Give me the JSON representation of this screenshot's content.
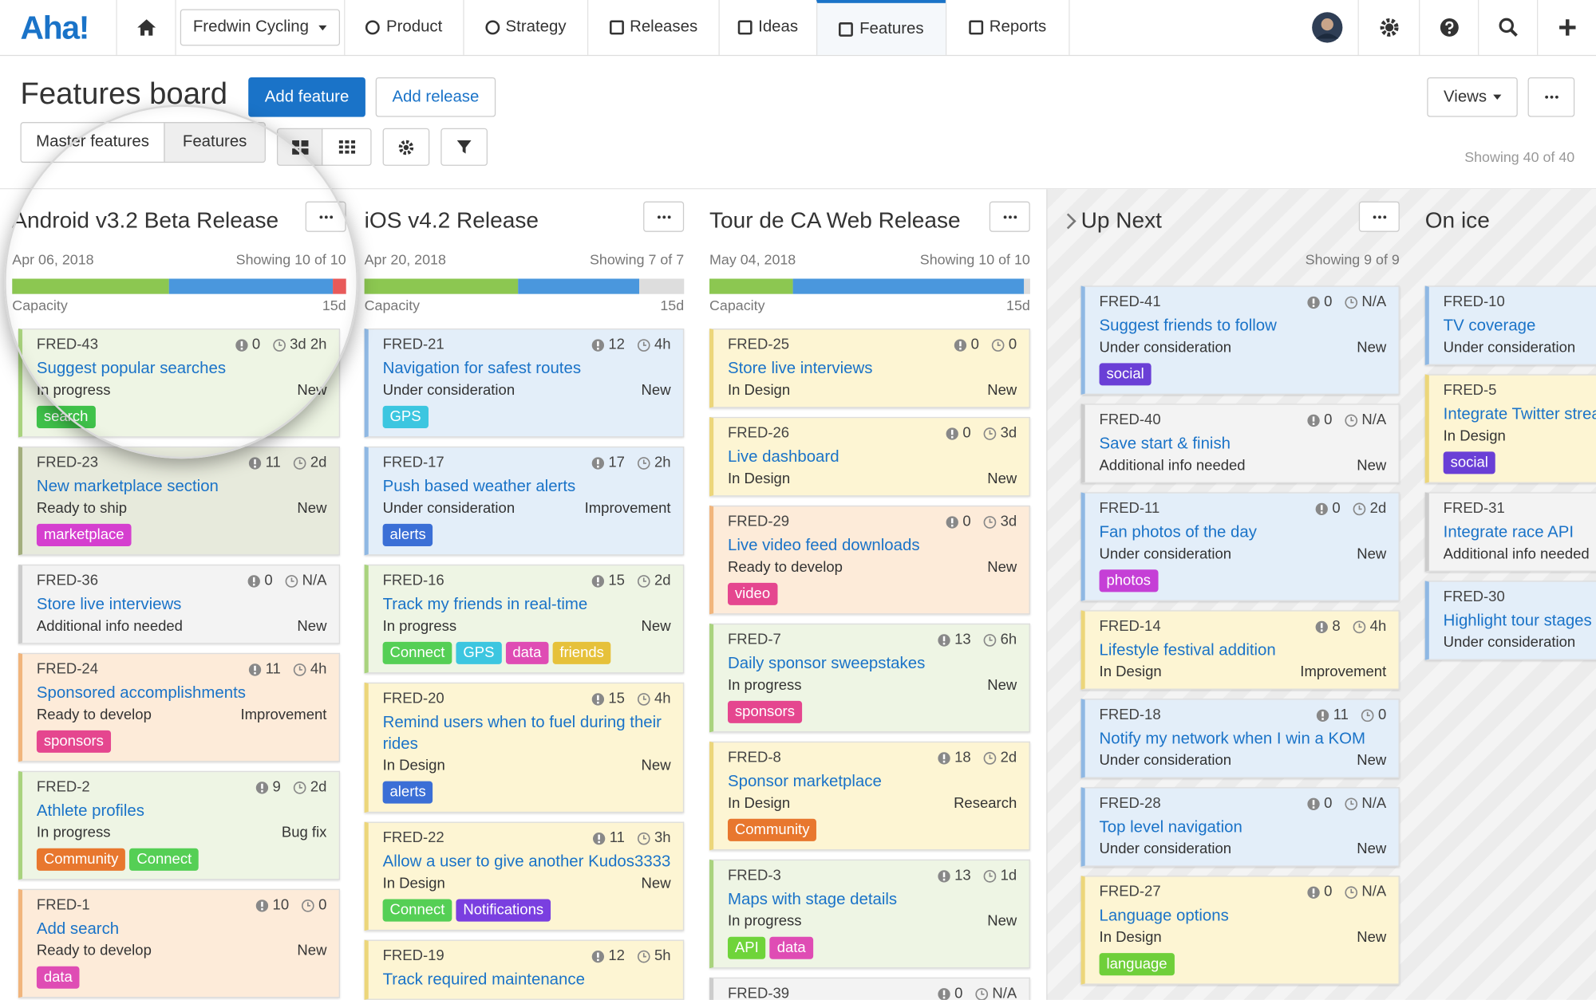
{
  "nav": {
    "logo": "Aha!",
    "workspace": "Fredwin Cycling",
    "items": [
      "Product",
      "Strategy",
      "Releases",
      "Ideas",
      "Features",
      "Reports"
    ],
    "active": "Features"
  },
  "header": {
    "title": "Features board",
    "add_feature": "Add feature",
    "add_release": "Add release",
    "views": "Views",
    "tabs": [
      "Master features",
      "Features"
    ],
    "showing": "Showing 40 of 40"
  },
  "columns": [
    {
      "title": "Android v3.2 Beta Release",
      "date": "Apr 06, 2018",
      "showing": "Showing 10 of 10",
      "capacity_label": "Capacity",
      "capacity_total": "15d",
      "capacity": [
        {
          "value": 47,
          "color": "#8cc751"
        },
        {
          "value": 49,
          "color": "#4a97dd"
        },
        {
          "value": 4,
          "color": "#e85a5a"
        }
      ],
      "cards": [
        {
          "id": "FRED-43",
          "score": 0,
          "time": "3d 2h",
          "title": "Suggest popular searches",
          "status": "In progress",
          "type": "New",
          "color": "#eef5e4",
          "border": "#a9d37e",
          "tags": [
            {
              "name": "search",
              "color": "#3fc24a"
            }
          ]
        },
        {
          "id": "FRED-23",
          "score": 11,
          "time": "2d",
          "title": "New marketplace section",
          "status": "Ready to ship",
          "type": "New",
          "color": "#e7eadc",
          "border": "#a3ae7e",
          "tags": [
            {
              "name": "marketplace",
              "color": "#d53fcf"
            }
          ]
        },
        {
          "id": "FRED-36",
          "score": 0,
          "time": "N/A",
          "title": "Store live interviews",
          "status": "Additional info needed",
          "type": "New",
          "color": "#f3f3f3",
          "border": "#cccccc",
          "tags": []
        },
        {
          "id": "FRED-24",
          "score": 11,
          "time": "4h",
          "title": "Sponsored accomplishments",
          "status": "Ready to develop",
          "type": "Improvement",
          "color": "#fdebd9",
          "border": "#f1b57c",
          "tags": [
            {
              "name": "sponsors",
              "color": "#e5468f"
            }
          ]
        },
        {
          "id": "FRED-2",
          "score": 9,
          "time": "2d",
          "title": "Athlete profiles",
          "status": "In progress",
          "type": "Bug fix",
          "color": "#eef5e4",
          "border": "#a9d37e",
          "tags": [
            {
              "name": "Community",
              "color": "#e8772e"
            },
            {
              "name": "Connect",
              "color": "#55cf55"
            }
          ]
        },
        {
          "id": "FRED-1",
          "score": 10,
          "time": "0",
          "title": "Add search",
          "status": "Ready to develop",
          "type": "New",
          "color": "#fdebd9",
          "border": "#f1b57c",
          "tags": [
            {
              "name": "data",
              "color": "#df4cb4"
            }
          ]
        }
      ]
    },
    {
      "title": "iOS v4.2 Release",
      "date": "Apr 20, 2018",
      "showing": "Showing 7 of 7",
      "capacity_label": "Capacity",
      "capacity_total": "15d",
      "capacity": [
        {
          "value": 48,
          "color": "#8cc751"
        },
        {
          "value": 38,
          "color": "#4a97dd"
        },
        {
          "value": 14,
          "color": "#dddddd"
        }
      ],
      "cards": [
        {
          "id": "FRED-21",
          "score": 12,
          "time": "4h",
          "title": "Navigation for safest routes",
          "status": "Under consideration",
          "type": "New",
          "color": "#e3eef9",
          "border": "#8fb8e3",
          "tags": [
            {
              "name": "GPS",
              "color": "#3cc6e0"
            }
          ]
        },
        {
          "id": "FRED-17",
          "score": 17,
          "time": "2h",
          "title": "Push based weather alerts",
          "status": "Under consideration",
          "type": "Improvement",
          "color": "#e3eef9",
          "border": "#8fb8e3",
          "tags": [
            {
              "name": "alerts",
              "color": "#3b6fd6"
            }
          ]
        },
        {
          "id": "FRED-16",
          "score": 15,
          "time": "2d",
          "title": "Track my friends in real-time",
          "status": "In progress",
          "type": "New",
          "color": "#eef5e4",
          "border": "#a9d37e",
          "tags": [
            {
              "name": "Connect",
              "color": "#55cf55"
            },
            {
              "name": "GPS",
              "color": "#3cc6e0"
            },
            {
              "name": "data",
              "color": "#df4cb4"
            },
            {
              "name": "friends",
              "color": "#e6c13a"
            }
          ]
        },
        {
          "id": "FRED-20",
          "score": 15,
          "time": "4h",
          "title": "Remind users when to fuel during their rides",
          "status": "In Design",
          "type": "New",
          "color": "#fdf5d3",
          "border": "#ecd67a",
          "tags": [
            {
              "name": "alerts",
              "color": "#3b6fd6"
            }
          ]
        },
        {
          "id": "FRED-22",
          "score": 11,
          "time": "3h",
          "title": "Allow a user to give another Kudos3333",
          "status": "In Design",
          "type": "New",
          "color": "#fdf5d3",
          "border": "#ecd67a",
          "tags": [
            {
              "name": "Connect",
              "color": "#55cf55"
            },
            {
              "name": "Notifications",
              "color": "#7a3fe0"
            }
          ]
        },
        {
          "id": "FRED-19",
          "score": 12,
          "time": "5h",
          "title": "Track required maintenance",
          "color": "#fdf5d3",
          "border": "#ecd67a",
          "tags": []
        }
      ]
    },
    {
      "title": "Tour de CA Web Release",
      "date": "May 04, 2018",
      "showing": "Showing 10 of 10",
      "capacity_label": "Capacity",
      "capacity_total": "15d",
      "capacity": [
        {
          "value": 26,
          "color": "#8cc751"
        },
        {
          "value": 72,
          "color": "#4a97dd"
        },
        {
          "value": 2,
          "color": "#dddddd"
        }
      ],
      "cards": [
        {
          "id": "FRED-25",
          "score": 0,
          "time": "0",
          "title": "Store live interviews",
          "status": "In Design",
          "type": "New",
          "color": "#fdf5d3",
          "border": "#ecd67a",
          "tags": []
        },
        {
          "id": "FRED-26",
          "score": 0,
          "time": "3d",
          "title": "Live dashboard",
          "status": "In Design",
          "type": "New",
          "color": "#fdf5d3",
          "border": "#ecd67a",
          "tags": []
        },
        {
          "id": "FRED-29",
          "score": 0,
          "time": "3d",
          "title": "Live video feed downloads",
          "status": "Ready to develop",
          "type": "New",
          "color": "#fdebd9",
          "border": "#f1b57c",
          "tags": [
            {
              "name": "video",
              "color": "#e5468f"
            }
          ]
        },
        {
          "id": "FRED-7",
          "score": 13,
          "time": "6h",
          "title": "Daily sponsor sweepstakes",
          "status": "In progress",
          "type": "New",
          "color": "#eef5e4",
          "border": "#a9d37e",
          "tags": [
            {
              "name": "sponsors",
              "color": "#e5468f"
            }
          ]
        },
        {
          "id": "FRED-8",
          "score": 18,
          "time": "2d",
          "title": "Sponsor marketplace",
          "status": "In Design",
          "type": "Research",
          "color": "#fdf5d3",
          "border": "#ecd67a",
          "tags": [
            {
              "name": "Community",
              "color": "#e8772e"
            }
          ]
        },
        {
          "id": "FRED-3",
          "score": 13,
          "time": "1d",
          "title": "Maps with stage details",
          "status": "In progress",
          "type": "New",
          "color": "#eef5e4",
          "border": "#a9d37e",
          "tags": [
            {
              "name": "API",
              "color": "#6fd43a"
            },
            {
              "name": "data",
              "color": "#df4cb4"
            }
          ]
        },
        {
          "id": "FRED-39",
          "score": 0,
          "time": "N/A",
          "color": "#f3f3f3",
          "border": "#cccccc",
          "tags": []
        }
      ]
    },
    {
      "title": "Up Next",
      "showing": "Showing 9 of 9",
      "cards": [
        {
          "id": "FRED-41",
          "score": 0,
          "time": "N/A",
          "title": "Suggest friends to follow",
          "status": "Under consideration",
          "type": "New",
          "color": "#e3eef9",
          "border": "#8fb8e3",
          "tags": [
            {
              "name": "social",
              "color": "#6a3fd6"
            }
          ]
        },
        {
          "id": "FRED-40",
          "score": 0,
          "time": "N/A",
          "title": "Save start & finish",
          "status": "Additional info needed",
          "type": "New",
          "color": "#f3f3f3",
          "border": "#cccccc",
          "tags": []
        },
        {
          "id": "FRED-11",
          "score": 0,
          "time": "2d",
          "title": "Fan photos of the day",
          "status": "Under consideration",
          "type": "New",
          "color": "#e3eef9",
          "border": "#8fb8e3",
          "tags": [
            {
              "name": "photos",
              "color": "#c53fd6"
            }
          ]
        },
        {
          "id": "FRED-14",
          "score": 8,
          "time": "4h",
          "title": "Lifestyle festival addition",
          "status": "In Design",
          "type": "Improvement",
          "color": "#fdf5d3",
          "border": "#ecd67a",
          "tags": []
        },
        {
          "id": "FRED-18",
          "score": 11,
          "time": "0",
          "title": "Notify my network when I win a KOM",
          "status": "Under consideration",
          "type": "New",
          "color": "#e3eef9",
          "border": "#8fb8e3",
          "tags": []
        },
        {
          "id": "FRED-28",
          "score": 0,
          "time": "N/A",
          "title": "Top level navigation",
          "status": "Under consideration",
          "type": "New",
          "color": "#e3eef9",
          "border": "#8fb8e3",
          "tags": []
        },
        {
          "id": "FRED-27",
          "score": 0,
          "time": "N/A",
          "title": "Language options",
          "status": "In Design",
          "type": "New",
          "color": "#fdf5d3",
          "border": "#ecd67a",
          "tags": [
            {
              "name": "language",
              "color": "#6fcf3a"
            }
          ]
        }
      ]
    },
    {
      "title": "On ice",
      "cards": [
        {
          "id": "FRED-10",
          "title": "TV coverage",
          "status": "Under consideration",
          "color": "#e3eef9",
          "border": "#8fb8e3",
          "tags": []
        },
        {
          "id": "FRED-5",
          "title": "Integrate Twitter strea",
          "status": "In Design",
          "color": "#fdf5d3",
          "border": "#ecd67a",
          "tags": [
            {
              "name": "social",
              "color": "#6a3fd6"
            }
          ]
        },
        {
          "id": "FRED-31",
          "title": "Integrate race API",
          "status": "Additional info needed",
          "color": "#f3f3f3",
          "border": "#cccccc",
          "tags": []
        },
        {
          "id": "FRED-30",
          "title": "Highlight tour stages",
          "status": "Under consideration",
          "color": "#e3eef9",
          "border": "#8fb8e3",
          "tags": []
        }
      ]
    }
  ]
}
